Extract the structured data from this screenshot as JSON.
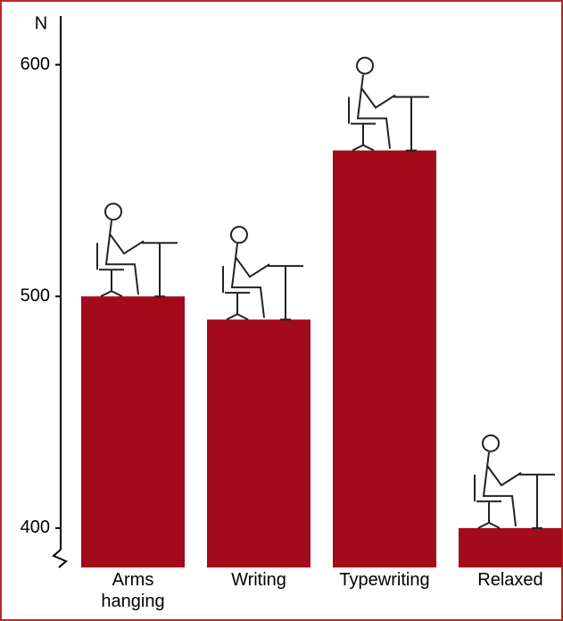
{
  "chart_data": {
    "type": "bar",
    "y_unit": "N",
    "categories": [
      "Arms hanging",
      "Writing",
      "Typewriting",
      "Relaxed"
    ],
    "values": [
      500,
      490,
      563,
      400
    ],
    "color": "#a30a1c",
    "ylim": [
      383,
      621
    ],
    "yticks": [
      400,
      500,
      600
    ]
  }
}
